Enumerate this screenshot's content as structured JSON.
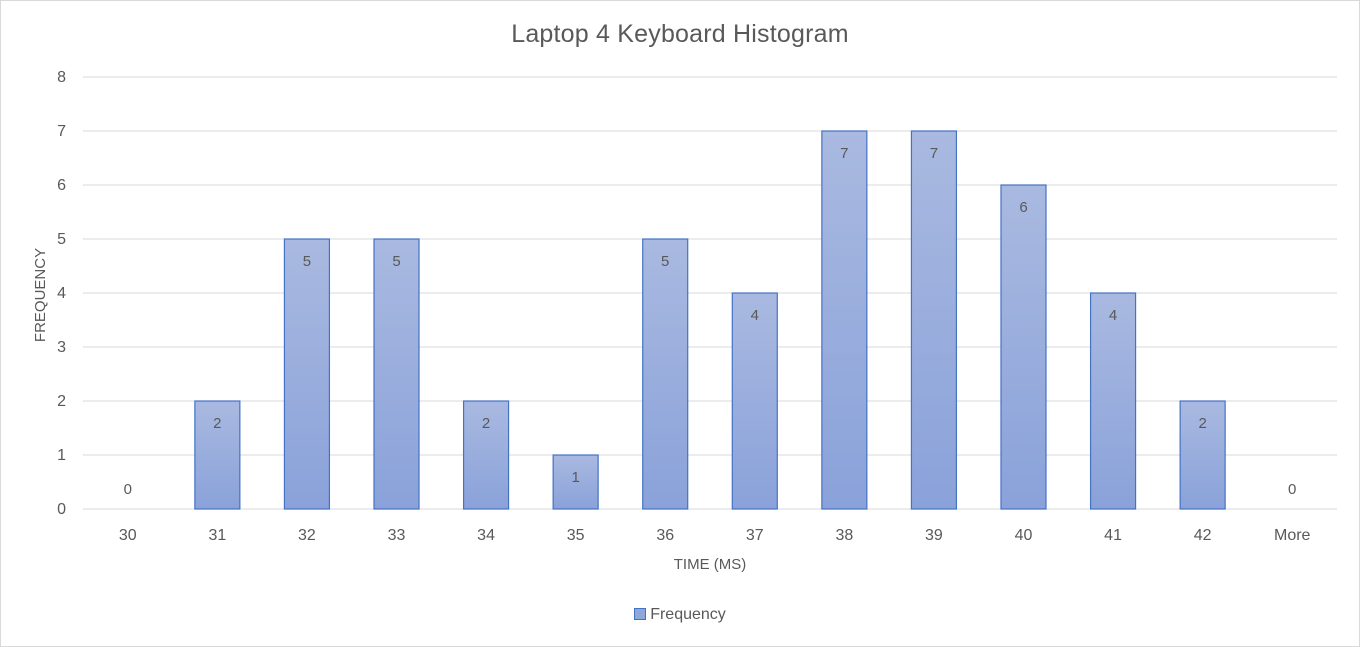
{
  "chart_data": {
    "type": "bar",
    "title": "Laptop 4 Keyboard  Histogram",
    "xlabel": "TIME (MS)",
    "ylabel": "FREQUENCY",
    "categories": [
      "30",
      "31",
      "32",
      "33",
      "34",
      "35",
      "36",
      "37",
      "38",
      "39",
      "40",
      "41",
      "42",
      "More"
    ],
    "series": [
      {
        "name": "Frequency",
        "values": [
          0,
          2,
          5,
          5,
          2,
          1,
          5,
          4,
          7,
          7,
          6,
          4,
          2,
          0
        ]
      }
    ],
    "ylim": [
      0,
      8
    ],
    "yticks": [
      0,
      1,
      2,
      3,
      4,
      5,
      6,
      7,
      8
    ],
    "grid": true,
    "legend_position": "bottom",
    "data_labels": true,
    "colors": {
      "bar_fill_top": "#a9b9e0",
      "bar_fill_bottom": "#8aa2da",
      "bar_border": "#4472c4",
      "grid": "#d9d9d9",
      "text": "#595959"
    }
  }
}
